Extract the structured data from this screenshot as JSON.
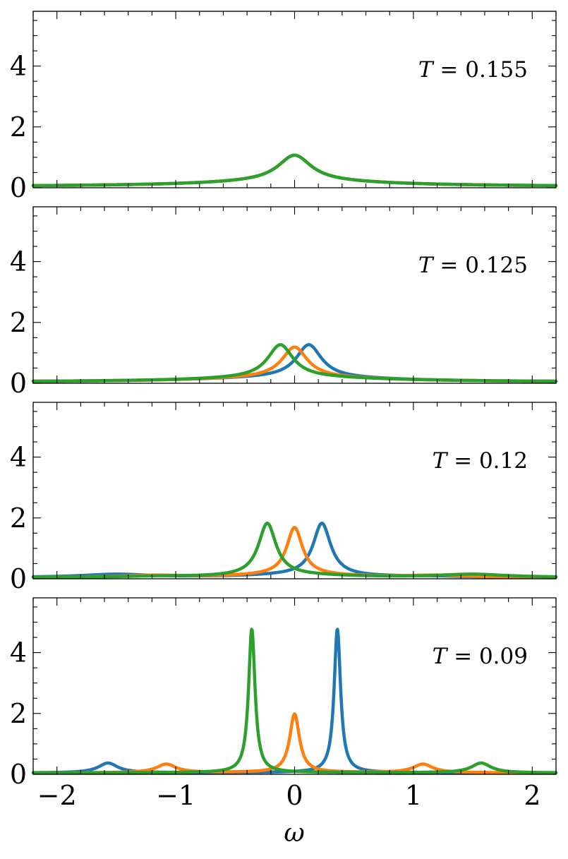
{
  "chart_data": {
    "type": "line",
    "layout": "4 vertically stacked panels sharing x-axis",
    "xlabel": "ω",
    "xlim": [
      -2.2,
      2.2
    ],
    "ylim": [
      0,
      5.8
    ],
    "x_ticks": [
      -2,
      -1,
      0,
      1,
      2
    ],
    "x_tick_labels": [
      "−2",
      "−1",
      "0",
      "1",
      "2"
    ],
    "y_ticks": [
      0,
      2,
      4
    ],
    "y_tick_labels": [
      "0",
      "2",
      "4"
    ],
    "series_colors": {
      "blue": "#1f77b4",
      "orange": "#ff7f0e",
      "green": "#2ca02c"
    },
    "panels": [
      {
        "label_var": "T",
        "label_value": "= 0.155",
        "series": [
          {
            "name": "blue",
            "color": "#1f77b4",
            "peaks": [
              {
                "x0": 0.0,
                "amp": 0.86,
                "w": 0.17
              }
            ],
            "base": [
              {
                "x0": 0.0,
                "amp": 0.17,
                "w": 0.95
              }
            ]
          },
          {
            "name": "orange",
            "color": "#ff7f0e",
            "peaks": [
              {
                "x0": 0.0,
                "amp": 0.86,
                "w": 0.17
              }
            ],
            "base": [
              {
                "x0": 0.0,
                "amp": 0.17,
                "w": 0.95
              }
            ]
          },
          {
            "name": "green",
            "color": "#2ca02c",
            "peaks": [
              {
                "x0": 0.0,
                "amp": 0.86,
                "w": 0.17
              }
            ],
            "base": [
              {
                "x0": 0.0,
                "amp": 0.17,
                "w": 0.95
              }
            ]
          }
        ]
      },
      {
        "label_var": "T",
        "label_value": "= 0.125",
        "series": [
          {
            "name": "blue",
            "color": "#1f77b4",
            "peaks": [
              {
                "x0": 0.12,
                "amp": 1.08,
                "w": 0.13
              }
            ],
            "base": [
              {
                "x0": 0.0,
                "amp": 0.15,
                "w": 0.95
              }
            ]
          },
          {
            "name": "orange",
            "color": "#ff7f0e",
            "peaks": [
              {
                "x0": 0.0,
                "amp": 1.0,
                "w": 0.13
              }
            ],
            "base": [
              {
                "x0": 0.0,
                "amp": 0.15,
                "w": 0.95
              }
            ]
          },
          {
            "name": "green",
            "color": "#2ca02c",
            "peaks": [
              {
                "x0": -0.12,
                "amp": 1.08,
                "w": 0.13
              }
            ],
            "base": [
              {
                "x0": 0.0,
                "amp": 0.15,
                "w": 0.95
              }
            ]
          }
        ]
      },
      {
        "label_var": "T",
        "label_value": "= 0.12",
        "series": [
          {
            "name": "blue",
            "color": "#1f77b4",
            "peaks": [
              {
                "x0": 0.23,
                "amp": 1.72,
                "w": 0.09
              }
            ],
            "base": [
              {
                "x0": 0.0,
                "amp": 0.07,
                "w": 0.55
              },
              {
                "x0": -1.5,
                "amp": 0.1,
                "w": 0.35
              },
              {
                "x0": 1.15,
                "amp": 0.03,
                "w": 0.35
              }
            ]
          },
          {
            "name": "orange",
            "color": "#ff7f0e",
            "peaks": [
              {
                "x0": 0.0,
                "amp": 1.55,
                "w": 0.08
              }
            ],
            "base": [
              {
                "x0": 0.0,
                "amp": 0.09,
                "w": 0.55
              },
              {
                "x0": -1.2,
                "amp": 0.06,
                "w": 0.3
              },
              {
                "x0": 1.2,
                "amp": 0.06,
                "w": 0.3
              }
            ]
          },
          {
            "name": "green",
            "color": "#2ca02c",
            "peaks": [
              {
                "x0": -0.23,
                "amp": 1.72,
                "w": 0.09
              }
            ],
            "base": [
              {
                "x0": 0.0,
                "amp": 0.07,
                "w": 0.55
              },
              {
                "x0": 1.5,
                "amp": 0.1,
                "w": 0.35
              },
              {
                "x0": -1.15,
                "amp": 0.03,
                "w": 0.35
              }
            ]
          }
        ]
      },
      {
        "label_var": "T",
        "label_value": "= 0.09",
        "series": [
          {
            "name": "blue",
            "color": "#1f77b4",
            "peaks": [
              {
                "x0": 0.36,
                "amp": 4.72,
                "w": 0.033
              },
              {
                "x0": -1.57,
                "amp": 0.32,
                "w": 0.1
              }
            ],
            "base": [
              {
                "x0": 0.0,
                "amp": 0.02,
                "w": 1.5
              }
            ]
          },
          {
            "name": "orange",
            "color": "#ff7f0e",
            "peaks": [
              {
                "x0": 0.0,
                "amp": 1.92,
                "w": 0.05
              },
              {
                "x0": -1.08,
                "amp": 0.28,
                "w": 0.1
              },
              {
                "x0": 1.08,
                "amp": 0.28,
                "w": 0.1
              }
            ],
            "base": [
              {
                "x0": 0.0,
                "amp": 0.02,
                "w": 1.5
              }
            ]
          },
          {
            "name": "green",
            "color": "#2ca02c",
            "peaks": [
              {
                "x0": -0.36,
                "amp": 4.72,
                "w": 0.033
              },
              {
                "x0": 1.57,
                "amp": 0.32,
                "w": 0.1
              }
            ],
            "base": [
              {
                "x0": 0.0,
                "amp": 0.02,
                "w": 1.5
              }
            ]
          }
        ]
      }
    ]
  }
}
